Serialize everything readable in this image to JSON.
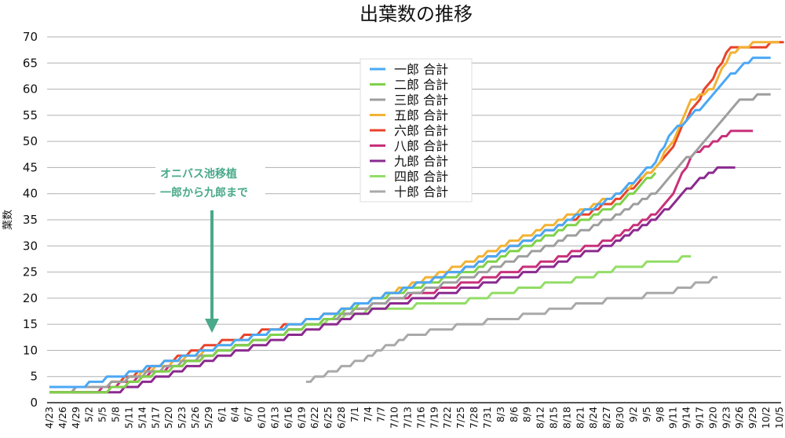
{
  "chart_data": {
    "type": "line",
    "title": "出葉数の推移",
    "ylabel": "葉数",
    "xlabel": "",
    "ylim": [
      0,
      70
    ],
    "yticks": [
      0,
      5,
      10,
      15,
      20,
      25,
      30,
      35,
      40,
      45,
      50,
      55,
      60,
      65,
      70
    ],
    "grid": true,
    "legend_position": "top-center",
    "x_start_label": "4/23",
    "x_step_days": 3,
    "xtick_labels": [
      "4/23",
      "4/26",
      "4/29",
      "5/2",
      "5/5",
      "5/8",
      "5/11",
      "5/14",
      "5/17",
      "5/20",
      "5/23",
      "5/26",
      "5/29",
      "6/1",
      "6/4",
      "6/7",
      "6/10",
      "6/13",
      "6/16",
      "6/19",
      "6/22",
      "6/25",
      "6/28",
      "7/1",
      "7/4",
      "7/7",
      "7/10",
      "7/13",
      "7/16",
      "7/19",
      "7/22",
      "7/25",
      "7/28",
      "7/31",
      "8/3",
      "8/6",
      "8/9",
      "8/12",
      "8/15",
      "8/18",
      "8/21",
      "8/24",
      "8/27",
      "8/30",
      "9/2",
      "9/5",
      "9/8",
      "9/11",
      "9/14",
      "9/17",
      "9/20",
      "9/23",
      "9/26",
      "9/29",
      "10/2",
      "10/5"
    ],
    "series_note": "points are [days since 4/23, leaf count]",
    "series": [
      {
        "name": "一郎 合計",
        "color": "#4aa8f5",
        "points": [
          [
            0,
            3
          ],
          [
            8,
            3
          ],
          [
            10,
            4
          ],
          [
            20,
            6
          ],
          [
            36,
            10
          ],
          [
            60,
            16
          ],
          [
            74,
            20
          ],
          [
            95,
            26
          ],
          [
            113,
            33
          ],
          [
            129,
            40
          ],
          [
            137,
            46
          ],
          [
            141,
            52
          ],
          [
            148,
            57
          ],
          [
            152,
            61
          ],
          [
            156,
            64
          ],
          [
            160,
            66
          ],
          [
            163,
            66
          ]
        ]
      },
      {
        "name": "二郎 合計",
        "color": "#7fd14a",
        "points": [
          [
            0,
            2
          ],
          [
            12,
            2
          ],
          [
            36,
            9
          ],
          [
            60,
            15
          ],
          [
            74,
            20
          ],
          [
            95,
            25
          ],
          [
            113,
            32
          ],
          [
            129,
            38
          ],
          [
            137,
            44
          ]
        ]
      },
      {
        "name": "三郎 合計",
        "color": "#9e9e9e",
        "points": [
          [
            0,
            2
          ],
          [
            12,
            3
          ],
          [
            36,
            9
          ],
          [
            60,
            15
          ],
          [
            74,
            19
          ],
          [
            95,
            24
          ],
          [
            113,
            30
          ],
          [
            129,
            36
          ],
          [
            137,
            40
          ],
          [
            141,
            44
          ],
          [
            148,
            50
          ],
          [
            152,
            54
          ],
          [
            156,
            58
          ],
          [
            163,
            59
          ]
        ]
      },
      {
        "name": "五郎 合計",
        "color": "#f2b234",
        "points": [
          [
            0,
            2
          ],
          [
            12,
            3
          ],
          [
            36,
            10
          ],
          [
            60,
            16
          ],
          [
            74,
            20
          ],
          [
            95,
            27
          ],
          [
            113,
            34
          ],
          [
            129,
            40
          ],
          [
            137,
            45
          ],
          [
            141,
            50
          ],
          [
            145,
            58
          ],
          [
            150,
            60
          ],
          [
            154,
            67
          ],
          [
            160,
            69
          ],
          [
            165,
            69
          ]
        ]
      },
      {
        "name": "六郎 合計",
        "color": "#e8432a",
        "points": [
          [
            0,
            2
          ],
          [
            12,
            3
          ],
          [
            36,
            11
          ],
          [
            60,
            16
          ],
          [
            74,
            20
          ],
          [
            95,
            26
          ],
          [
            113,
            33
          ],
          [
            129,
            39
          ],
          [
            137,
            45
          ],
          [
            141,
            49
          ],
          [
            145,
            56
          ],
          [
            150,
            62
          ],
          [
            154,
            68
          ],
          [
            160,
            68
          ],
          [
            166,
            69
          ]
        ]
      },
      {
        "name": "八郎 合計",
        "color": "#c8307a",
        "points": [
          [
            0,
            2
          ],
          [
            10,
            2
          ],
          [
            36,
            9
          ],
          [
            60,
            15
          ],
          [
            74,
            19
          ],
          [
            95,
            23
          ],
          [
            113,
            27
          ],
          [
            129,
            32
          ],
          [
            137,
            36
          ],
          [
            141,
            40
          ],
          [
            145,
            47
          ],
          [
            150,
            50
          ],
          [
            155,
            52
          ],
          [
            159,
            52
          ]
        ]
      },
      {
        "name": "九郎 合計",
        "color": "#8b2a8f",
        "points": [
          [
            0,
            2
          ],
          [
            15,
            2
          ],
          [
            36,
            8
          ],
          [
            60,
            14
          ],
          [
            74,
            18
          ],
          [
            95,
            22
          ],
          [
            113,
            26
          ],
          [
            129,
            31
          ],
          [
            137,
            35
          ],
          [
            141,
            38
          ],
          [
            147,
            43
          ],
          [
            152,
            45
          ],
          [
            155,
            45
          ]
        ]
      },
      {
        "name": "四郎 合計",
        "color": "#92dd66",
        "points": [
          [
            0,
            2
          ],
          [
            12,
            2
          ],
          [
            36,
            9
          ],
          [
            60,
            15
          ],
          [
            74,
            18
          ],
          [
            92,
            19
          ],
          [
            108,
            22
          ],
          [
            122,
            24
          ],
          [
            130,
            26
          ],
          [
            140,
            27
          ],
          [
            145,
            28
          ]
        ]
      },
      {
        "name": "十郎 合計",
        "color": "#a9a9a9",
        "points": [
          [
            58,
            4
          ],
          [
            70,
            8
          ],
          [
            82,
            13
          ],
          [
            95,
            15
          ],
          [
            110,
            17
          ],
          [
            122,
            19
          ],
          [
            130,
            20
          ],
          [
            140,
            21
          ],
          [
            148,
            23
          ],
          [
            151,
            24
          ]
        ]
      }
    ],
    "annotation": {
      "lines": [
        "オニバス池移植",
        "一郎から九郎まで"
      ],
      "color": "#4aa98a",
      "target_label": "5/29"
    }
  }
}
